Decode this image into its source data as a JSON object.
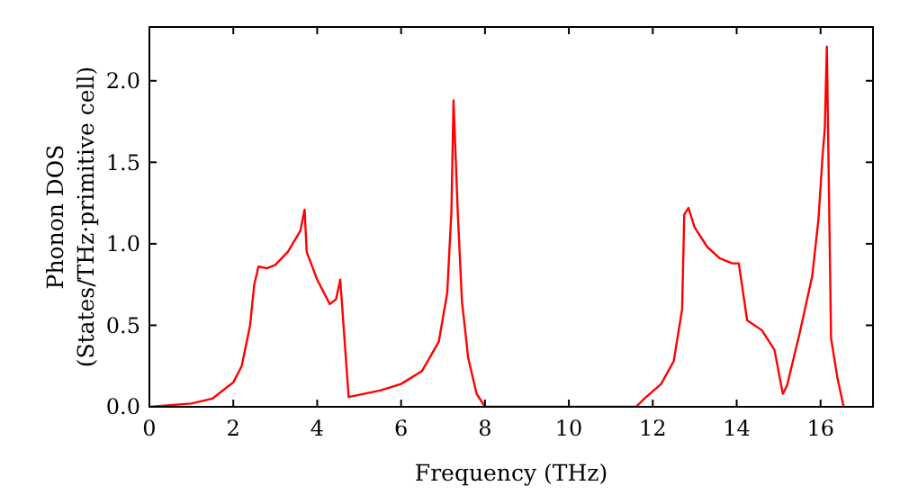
{
  "chart_data": {
    "type": "line",
    "xlabel": "Frequency (THz)",
    "ylabel": "Phonon DOS\n(States/THz·primitive cell)",
    "xlim": [
      0,
      17.25
    ],
    "ylim": [
      0,
      2.33
    ],
    "xticks": [
      0,
      2,
      4,
      6,
      8,
      10,
      12,
      14,
      16
    ],
    "yticks": [
      {
        "value": 0,
        "label": "0.0"
      },
      0.5,
      {
        "value": 1,
        "label": "1.0"
      },
      1.5,
      {
        "value": 2,
        "label": "2.0"
      }
    ],
    "grid": false,
    "marker": "none",
    "line_style": "solid",
    "series": [
      {
        "color": "#ff0000",
        "x": [
          0,
          1,
          1.5,
          2,
          2.2,
          2.4,
          2.5,
          2.6,
          2.8,
          3.0,
          3.3,
          3.6,
          3.7,
          3.75,
          4.0,
          4.3,
          4.45,
          4.55,
          4.75,
          5.5,
          6.0,
          6.5,
          6.9,
          7.1,
          7.2,
          7.25,
          7.35,
          7.45,
          7.6,
          7.8,
          8.0,
          11.6,
          11.8,
          12.2,
          12.5,
          12.7,
          12.75,
          12.85,
          13.0,
          13.3,
          13.6,
          13.9,
          14.05,
          14.25,
          14.6,
          14.9,
          15.1,
          15.2,
          15.5,
          15.8,
          15.95,
          16.05,
          16.1,
          16.15,
          16.25,
          16.4,
          16.55
        ],
        "values": [
          0,
          0.02,
          0.05,
          0.15,
          0.25,
          0.5,
          0.75,
          0.86,
          0.85,
          0.87,
          0.95,
          1.08,
          1.21,
          0.95,
          0.78,
          0.63,
          0.66,
          0.78,
          0.06,
          0.1,
          0.14,
          0.22,
          0.4,
          0.7,
          1.2,
          1.88,
          1.2,
          0.65,
          0.3,
          0.08,
          0,
          0,
          0.05,
          0.14,
          0.28,
          0.6,
          1.18,
          1.22,
          1.1,
          0.98,
          0.91,
          0.88,
          0.88,
          0.53,
          0.47,
          0.35,
          0.08,
          0.13,
          0.45,
          0.8,
          1.15,
          1.55,
          1.7,
          2.21,
          0.42,
          0.18,
          0
        ]
      }
    ]
  }
}
